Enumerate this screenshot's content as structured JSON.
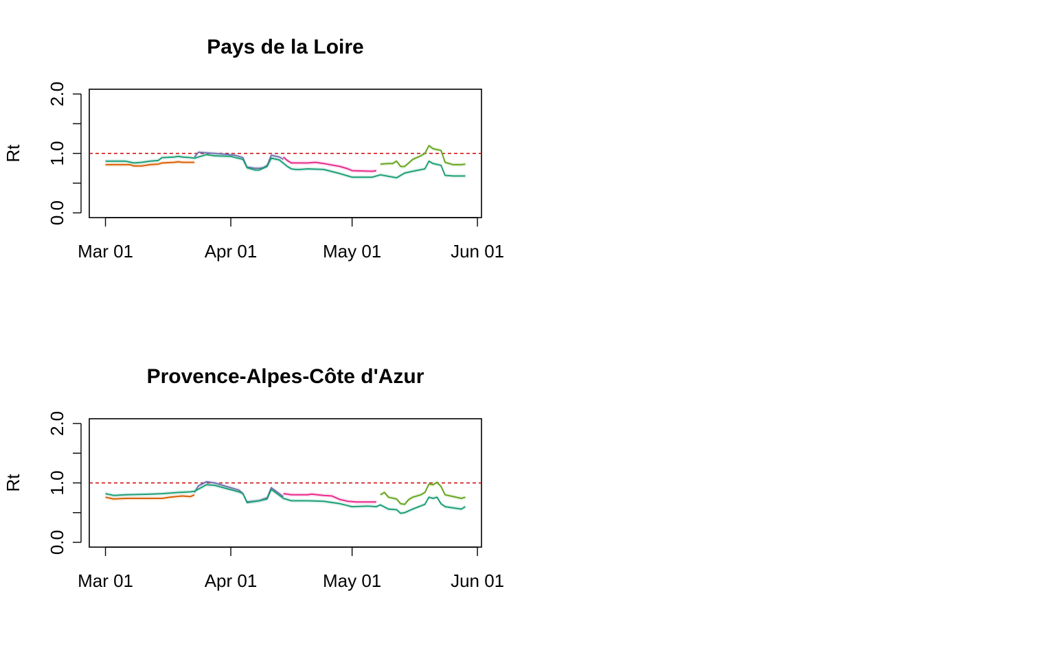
{
  "chart_data": [
    {
      "type": "line",
      "title": "Pays de la Loire",
      "xlabel": "",
      "ylabel": "Rt",
      "x_ticks": [
        "2020-03-01",
        "2020-04-01",
        "2020-05-01",
        "2020-06-01"
      ],
      "x_tick_labels": [
        "Mar 01",
        "Apr 01",
        "May 01",
        "Jun 01"
      ],
      "xlim": [
        "2020-02-26",
        "2020-06-02"
      ],
      "ylim": [
        0,
        2.0
      ],
      "y_ticks": [
        0,
        0.5,
        1.0,
        1.5,
        2.0
      ],
      "y_tick_labels": [
        "0.0",
        "",
        "1.0",
        "",
        "2.0"
      ],
      "reference_line": {
        "y": 1.0,
        "color": "#cc0000",
        "style": "dashed"
      },
      "series": [
        {
          "color": "#d95f02",
          "x": [
            "2020-03-01",
            "2020-03-07",
            "2020-03-08",
            "2020-03-10",
            "2020-03-12",
            "2020-03-14",
            "2020-03-15",
            "2020-03-18",
            "2020-03-19",
            "2020-03-20",
            "2020-03-23"
          ],
          "y": [
            0.81,
            0.81,
            0.79,
            0.79,
            0.81,
            0.82,
            0.84,
            0.85,
            0.86,
            0.85,
            0.85
          ]
        },
        {
          "color": "#7570b3",
          "x": [
            "2020-03-23",
            "2020-03-24",
            "2020-03-26",
            "2020-03-28",
            "2020-03-30",
            "2020-04-02",
            "2020-04-04",
            "2020-04-05",
            "2020-04-07",
            "2020-04-08",
            "2020-04-09",
            "2020-04-10",
            "2020-04-11",
            "2020-04-13",
            "2020-04-14"
          ],
          "y": [
            0.94,
            1.02,
            1.01,
            1.0,
            0.99,
            0.97,
            0.93,
            0.77,
            0.75,
            0.75,
            0.76,
            0.8,
            0.97,
            0.94,
            0.9
          ]
        },
        {
          "color": "#e7298a",
          "x": [
            "2020-04-14",
            "2020-04-15",
            "2020-04-16",
            "2020-04-20",
            "2020-04-22",
            "2020-04-24",
            "2020-04-28",
            "2020-04-30",
            "2020-05-01",
            "2020-05-06",
            "2020-05-07"
          ],
          "y": [
            0.94,
            0.88,
            0.84,
            0.84,
            0.85,
            0.83,
            0.78,
            0.74,
            0.71,
            0.7,
            0.71
          ]
        },
        {
          "color": "#66a61e",
          "x": [
            "2020-05-08",
            "2020-05-10",
            "2020-05-11",
            "2020-05-12",
            "2020-05-13",
            "2020-05-14",
            "2020-05-16",
            "2020-05-18",
            "2020-05-19",
            "2020-05-20",
            "2020-05-21",
            "2020-05-23",
            "2020-05-24",
            "2020-05-26",
            "2020-05-28",
            "2020-05-29"
          ],
          "y": [
            0.82,
            0.83,
            0.83,
            0.87,
            0.78,
            0.78,
            0.9,
            0.96,
            1.0,
            1.13,
            1.08,
            1.05,
            0.85,
            0.81,
            0.81,
            0.82
          ]
        },
        {
          "color": "#1b9e77",
          "x": [
            "2020-03-01",
            "2020-03-06",
            "2020-03-08",
            "2020-03-10",
            "2020-03-12",
            "2020-03-14",
            "2020-03-15",
            "2020-03-18",
            "2020-03-19",
            "2020-03-20",
            "2020-03-22",
            "2020-03-23",
            "2020-03-26",
            "2020-03-28",
            "2020-04-01",
            "2020-04-04",
            "2020-04-05",
            "2020-04-07",
            "2020-04-08",
            "2020-04-10",
            "2020-04-11",
            "2020-04-13",
            "2020-04-15",
            "2020-04-16",
            "2020-04-17",
            "2020-04-18",
            "2020-04-20",
            "2020-04-24",
            "2020-04-28",
            "2020-05-01",
            "2020-05-06",
            "2020-05-08",
            "2020-05-12",
            "2020-05-13",
            "2020-05-14",
            "2020-05-16",
            "2020-05-19",
            "2020-05-20",
            "2020-05-21",
            "2020-05-23",
            "2020-05-24",
            "2020-05-26",
            "2020-05-29"
          ],
          "y": [
            0.87,
            0.87,
            0.84,
            0.85,
            0.87,
            0.88,
            0.93,
            0.94,
            0.95,
            0.94,
            0.93,
            0.92,
            0.98,
            0.96,
            0.95,
            0.9,
            0.76,
            0.72,
            0.72,
            0.78,
            0.92,
            0.89,
            0.78,
            0.74,
            0.73,
            0.73,
            0.74,
            0.73,
            0.66,
            0.6,
            0.6,
            0.64,
            0.59,
            0.63,
            0.67,
            0.7,
            0.74,
            0.87,
            0.83,
            0.8,
            0.63,
            0.62,
            0.62
          ]
        }
      ]
    },
    {
      "type": "line",
      "title": "Provence-Alpes-Côte d'Azur",
      "xlabel": "",
      "ylabel": "Rt",
      "x_ticks": [
        "2020-03-01",
        "2020-04-01",
        "2020-05-01",
        "2020-06-01"
      ],
      "x_tick_labels": [
        "Mar 01",
        "Apr 01",
        "May 01",
        "Jun 01"
      ],
      "xlim": [
        "2020-02-26",
        "2020-06-02"
      ],
      "ylim": [
        0,
        2.0
      ],
      "y_ticks": [
        0,
        0.5,
        1.0,
        1.5,
        2.0
      ],
      "y_tick_labels": [
        "0.0",
        "",
        "1.0",
        "",
        "2.0"
      ],
      "reference_line": {
        "y": 1.0,
        "color": "#cc0000",
        "style": "dashed"
      },
      "series": [
        {
          "color": "#d95f02",
          "x": [
            "2020-03-01",
            "2020-03-03",
            "2020-03-06",
            "2020-03-10",
            "2020-03-15",
            "2020-03-17",
            "2020-03-20",
            "2020-03-22",
            "2020-03-23"
          ],
          "y": [
            0.76,
            0.73,
            0.74,
            0.74,
            0.74,
            0.76,
            0.78,
            0.77,
            0.8
          ]
        },
        {
          "color": "#7570b3",
          "x": [
            "2020-03-23",
            "2020-03-24",
            "2020-03-26",
            "2020-03-28",
            "2020-03-30",
            "2020-04-03",
            "2020-04-04",
            "2020-04-05",
            "2020-04-08",
            "2020-04-10",
            "2020-04-11",
            "2020-04-12",
            "2020-04-14"
          ],
          "y": [
            0.84,
            0.95,
            1.02,
            1.0,
            0.96,
            0.88,
            0.82,
            0.68,
            0.7,
            0.75,
            0.92,
            0.87,
            0.77
          ]
        },
        {
          "color": "#e7298a",
          "x": [
            "2020-04-14",
            "2020-04-16",
            "2020-04-20",
            "2020-04-21",
            "2020-04-24",
            "2020-04-26",
            "2020-04-28",
            "2020-04-30",
            "2020-05-02",
            "2020-05-07"
          ],
          "y": [
            0.82,
            0.8,
            0.8,
            0.81,
            0.79,
            0.78,
            0.72,
            0.69,
            0.68,
            0.68
          ]
        },
        {
          "color": "#66a61e",
          "x": [
            "2020-05-08",
            "2020-05-09",
            "2020-05-10",
            "2020-05-12",
            "2020-05-13",
            "2020-05-14",
            "2020-05-15",
            "2020-05-16",
            "2020-05-18",
            "2020-05-19",
            "2020-05-20",
            "2020-05-21",
            "2020-05-22",
            "2020-05-23",
            "2020-05-24",
            "2020-05-26",
            "2020-05-28",
            "2020-05-29"
          ],
          "y": [
            0.8,
            0.84,
            0.76,
            0.73,
            0.65,
            0.64,
            0.72,
            0.76,
            0.8,
            0.84,
            0.98,
            0.97,
            1.01,
            0.94,
            0.8,
            0.77,
            0.74,
            0.76
          ]
        },
        {
          "color": "#1b9e77",
          "x": [
            "2020-03-01",
            "2020-03-03",
            "2020-03-06",
            "2020-03-12",
            "2020-03-15",
            "2020-03-19",
            "2020-03-22",
            "2020-03-23",
            "2020-03-26",
            "2020-03-28",
            "2020-04-03",
            "2020-04-04",
            "2020-04-05",
            "2020-04-08",
            "2020-04-10",
            "2020-04-11",
            "2020-04-14",
            "2020-04-16",
            "2020-04-20",
            "2020-04-24",
            "2020-04-28",
            "2020-05-01",
            "2020-05-05",
            "2020-05-07",
            "2020-05-08",
            "2020-05-10",
            "2020-05-12",
            "2020-05-13",
            "2020-05-14",
            "2020-05-16",
            "2020-05-19",
            "2020-05-20",
            "2020-05-21",
            "2020-05-22",
            "2020-05-23",
            "2020-05-24",
            "2020-05-26",
            "2020-05-28",
            "2020-05-29"
          ],
          "y": [
            0.82,
            0.79,
            0.8,
            0.81,
            0.82,
            0.84,
            0.85,
            0.86,
            0.97,
            0.96,
            0.85,
            0.82,
            0.67,
            0.7,
            0.73,
            0.89,
            0.74,
            0.7,
            0.7,
            0.69,
            0.65,
            0.6,
            0.61,
            0.6,
            0.63,
            0.56,
            0.55,
            0.49,
            0.5,
            0.56,
            0.64,
            0.76,
            0.74,
            0.76,
            0.65,
            0.6,
            0.58,
            0.56,
            0.6
          ]
        }
      ]
    }
  ]
}
